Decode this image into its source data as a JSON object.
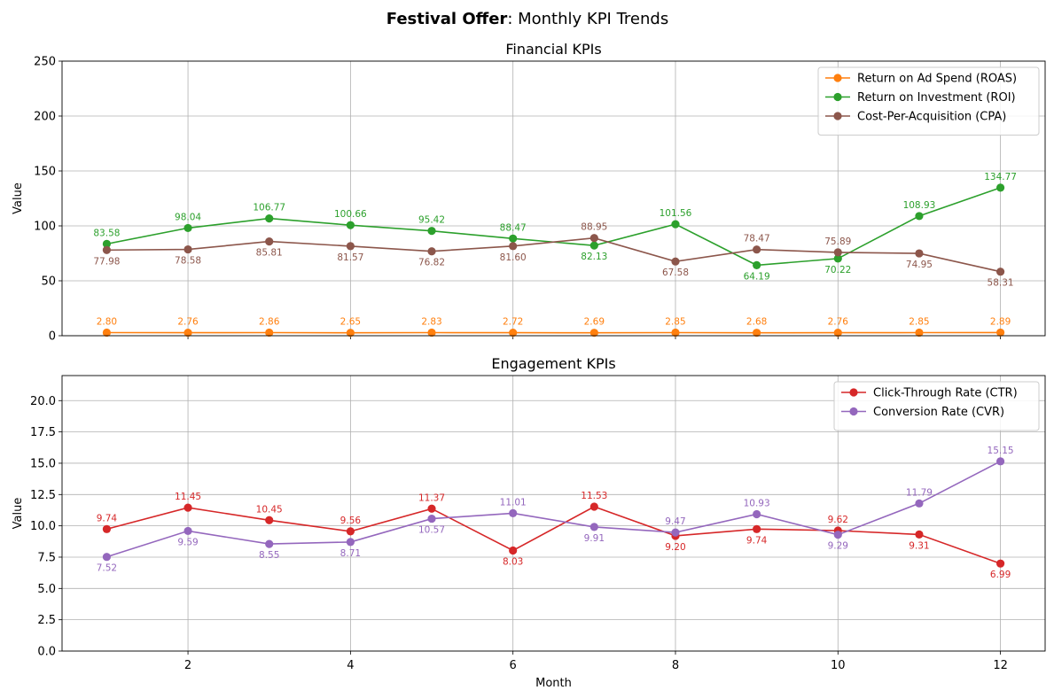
{
  "figure": {
    "title_bold": "Festival Offer",
    "title_rest": ": Monthly KPI Trends"
  },
  "chart_data": [
    {
      "type": "line",
      "title": "Financial KPIs",
      "xlabel": "",
      "ylabel": "Value",
      "x": [
        1,
        2,
        3,
        4,
        5,
        6,
        7,
        8,
        9,
        10,
        11,
        12
      ],
      "xlim": [
        0.45,
        12.55
      ],
      "ylim": [
        0,
        250
      ],
      "xticks": [
        2,
        4,
        6,
        8,
        10,
        12
      ],
      "yticks": [
        0,
        50,
        100,
        150,
        200,
        250
      ],
      "ytick_labels": [
        "0",
        "50",
        "100",
        "150",
        "200",
        "250"
      ],
      "grid": true,
      "legend_position": "top-right",
      "series": [
        {
          "name": "Return on Ad Spend (ROAS)",
          "color": "#ff7f0e",
          "values": [
            2.8,
            2.76,
            2.86,
            2.65,
            2.83,
            2.72,
            2.69,
            2.85,
            2.68,
            2.76,
            2.85,
            2.89
          ],
          "labels": [
            "2.80",
            "2.76",
            "2.86",
            "2.65",
            "2.83",
            "2.72",
            "2.69",
            "2.85",
            "2.68",
            "2.76",
            "2.85",
            "2.89"
          ],
          "label_pos": [
            "above",
            "above",
            "above",
            "above",
            "above",
            "above",
            "above",
            "above",
            "above",
            "above",
            "above",
            "above"
          ]
        },
        {
          "name": "Return on Investment (ROI)",
          "color": "#2ca02c",
          "values": [
            83.58,
            98.04,
            106.77,
            100.66,
            95.42,
            88.47,
            82.13,
            101.56,
            64.19,
            70.22,
            108.93,
            134.77
          ],
          "labels": [
            "83.58",
            "98.04",
            "106.77",
            "100.66",
            "95.42",
            "88.47",
            "82.13",
            "101.56",
            "64.19",
            "70.22",
            "108.93",
            "134.77"
          ],
          "label_pos": [
            "above",
            "above",
            "above",
            "above",
            "above",
            "above",
            "below",
            "above",
            "below",
            "below",
            "above",
            "above"
          ]
        },
        {
          "name": "Cost-Per-Acquisition (CPA)",
          "color": "#8c564b",
          "values": [
            77.98,
            78.58,
            85.81,
            81.57,
            76.82,
            81.6,
            88.95,
            67.58,
            78.47,
            75.89,
            74.95,
            58.31
          ],
          "labels": [
            "77.98",
            "78.58",
            "85.81",
            "81.57",
            "76.82",
            "81.60",
            "88.95",
            "67.58",
            "78.47",
            "75.89",
            "74.95",
            "58.31"
          ],
          "label_pos": [
            "below",
            "below",
            "below",
            "below",
            "below",
            "below",
            "above",
            "below",
            "above",
            "above",
            "below",
            "below"
          ]
        }
      ]
    },
    {
      "type": "line",
      "title": "Engagement KPIs",
      "xlabel": "Month",
      "ylabel": "Value",
      "x": [
        1,
        2,
        3,
        4,
        5,
        6,
        7,
        8,
        9,
        10,
        11,
        12
      ],
      "xlim": [
        0.45,
        12.55
      ],
      "ylim": [
        0,
        22
      ],
      "xticks": [
        2,
        4,
        6,
        8,
        10,
        12
      ],
      "xtick_labels": [
        "2",
        "4",
        "6",
        "8",
        "10",
        "12"
      ],
      "yticks": [
        0,
        2.5,
        5,
        7.5,
        10,
        12.5,
        15,
        17.5,
        20
      ],
      "ytick_labels": [
        "0.0",
        "2.5",
        "5.0",
        "7.5",
        "10.0",
        "12.5",
        "15.0",
        "17.5",
        "20.0"
      ],
      "grid": true,
      "legend_position": "top-right",
      "series": [
        {
          "name": "Click-Through Rate (CTR)",
          "color": "#d62728",
          "values": [
            9.74,
            11.45,
            10.45,
            9.56,
            11.37,
            8.03,
            11.53,
            9.2,
            9.74,
            9.62,
            9.31,
            6.99
          ],
          "labels": [
            "9.74",
            "11.45",
            "10.45",
            "9.56",
            "11.37",
            "8.03",
            "11.53",
            "9.20",
            "9.74",
            "9.62",
            "9.31",
            "6.99"
          ],
          "label_pos": [
            "above",
            "above",
            "above",
            "above",
            "above",
            "below",
            "above",
            "below",
            "below",
            "above",
            "below",
            "below"
          ]
        },
        {
          "name": "Conversion Rate (CVR)",
          "color": "#9467bd",
          "values": [
            7.52,
            9.59,
            8.55,
            8.71,
            10.57,
            11.01,
            9.91,
            9.47,
            10.93,
            9.29,
            11.79,
            15.15
          ],
          "labels": [
            "7.52",
            "9.59",
            "8.55",
            "8.71",
            "10.57",
            "11.01",
            "9.91",
            "9.47",
            "10.93",
            "9.29",
            "11.79",
            "15.15"
          ],
          "label_pos": [
            "below",
            "below",
            "below",
            "below",
            "below",
            "above",
            "below",
            "above",
            "above",
            "below",
            "above",
            "above"
          ]
        }
      ]
    }
  ]
}
